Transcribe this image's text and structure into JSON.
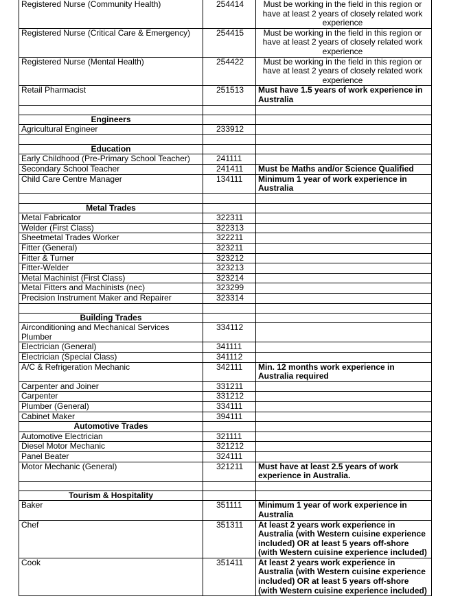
{
  "table": {
    "sections": [
      {
        "rows": [
          {
            "occupation": "Registered Nurse (Community Health)",
            "code": "254414",
            "requirement": "Must be working in the field in this region or have at least 2 years of closely related work experience"
          },
          {
            "occupation": "Registered Nurse (Critical Care & Emergency)",
            "code": "254415",
            "requirement": "Must be working in the field in this region or have at least 2 years of closely related work experience"
          },
          {
            "occupation": "Registered Nurse (Mental Health)",
            "code": "254422",
            "requirement": "Must be working in the field in this region or have at least 2 years of closely related work experience"
          },
          {
            "occupation": "Retail Pharmacist",
            "code": "251513",
            "requirement": "Must have 1.5 years of work experience in Australia"
          }
        ]
      },
      {
        "heading": "Engineers",
        "rows": [
          {
            "occupation": "Agricultural Engineer",
            "code": "233912"
          }
        ]
      },
      {
        "heading": "Education",
        "rows": [
          {
            "occupation": "Early Childhood (Pre-Primary School Teacher)",
            "code": "241111"
          },
          {
            "occupation": "Secondary School Teacher",
            "code": "241411",
            "requirement": "Must be Maths and/or Science Qualified"
          },
          {
            "occupation": "Child Care Centre Manager",
            "code": "134111",
            "requirement": "Minimum 1 year of work experience in Australia"
          }
        ]
      },
      {
        "heading": "Metal Trades",
        "rows": [
          {
            "occupation": "Metal Fabricator",
            "code": "322311"
          },
          {
            "occupation": "Welder (First Class)",
            "code": "322313"
          },
          {
            "occupation": "Sheetmetal Trades Worker",
            "code": "322211"
          },
          {
            "occupation": "Fitter (General)",
            "code": "323211"
          },
          {
            "occupation": "Fitter & Turner",
            "code": "323212"
          },
          {
            "occupation": "Fitter-Welder",
            "code": "323213"
          },
          {
            "occupation": "Metal Machinist (First Class)",
            "code": "323214"
          },
          {
            "occupation": "Metal Fitters and Machinists (nec)",
            "code": "323299"
          },
          {
            "occupation": "Precision Instrument Maker and Repairer",
            "code": "323314"
          }
        ]
      },
      {
        "heading": "Building Trades",
        "rows": [
          {
            "occupation": "Airconditioning and Mechanical Services Plumber",
            "code": "334112"
          },
          {
            "occupation": "Electrician (General)",
            "code": "341111"
          },
          {
            "occupation": "Electrician (Special Class)",
            "code": "341112"
          },
          {
            "occupation": "A/C & Refrigeration Mechanic",
            "code": "342111",
            "requirement": "Min. 12 months work experience in Australia required"
          },
          {
            "occupation": "Carpenter and Joiner",
            "code": "331211"
          },
          {
            "occupation": "Carpenter",
            "code": "331212"
          },
          {
            "occupation": "Plumber (General)",
            "code": "334111"
          },
          {
            "occupation": "Cabinet Maker",
            "code": "394111"
          }
        ]
      },
      {
        "heading": "Automotive Trades",
        "nospacer": true,
        "rows": [
          {
            "occupation": "Automotive Electrician",
            "code": "321111"
          },
          {
            "occupation": "Diesel Motor Mechanic",
            "code": "321212"
          },
          {
            "occupation": "Panel Beater",
            "code": "324111"
          },
          {
            "occupation": "Motor Mechanic (General)",
            "code": "321211",
            "requirement": "Must have at least 2.5 years of work experience in Australia."
          }
        ]
      },
      {
        "heading": "Tourism & Hospitality",
        "rows": [
          {
            "occupation": "Baker",
            "code": "351111",
            "requirement": "Minimum 1 year of work experience in Australia"
          },
          {
            "occupation": "Chef",
            "code": "351311",
            "requirement": "At least 2 years work experience in Australia (with Western cuisine experience included) OR at least 5 years off-shore (with Western cuisine experience included)"
          },
          {
            "occupation": "Cook",
            "code": "351411",
            "requirement": "At least 2 years work experience in Australia (with Western cuisine experience included) OR at least 5 years off-shore (with Western cuisine experience included)"
          }
        ]
      }
    ]
  }
}
